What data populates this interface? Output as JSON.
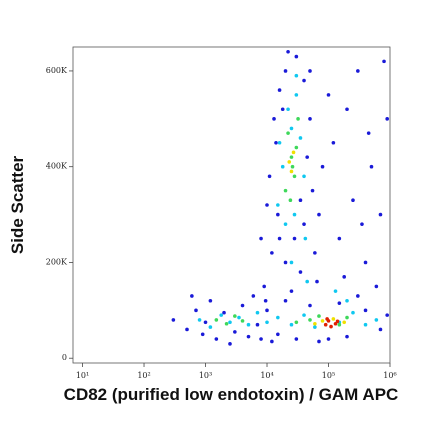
{
  "chart_data": {
    "type": "scatter",
    "x_label": "CD82 (purified low endotoxin) / GAM APC",
    "y_label": "Side Scatter",
    "xscale": "log",
    "xlim": [
      7,
      1000000
    ],
    "xticks": [
      {
        "value": 10,
        "label": "10¹"
      },
      {
        "value": 100,
        "label": "10²"
      },
      {
        "value": 1000,
        "label": "10³"
      },
      {
        "value": 10000,
        "label": "10⁴"
      },
      {
        "value": 100000,
        "label": "10⁵"
      },
      {
        "value": 1000000,
        "label": "10⁶"
      }
    ],
    "ylim": [
      -10000,
      650000
    ],
    "yticks": [
      0,
      {
        "value": 200000,
        "label": "200K"
      },
      {
        "value": 400000,
        "label": "400K"
      },
      {
        "value": 600000,
        "label": "600K"
      }
    ],
    "series": [
      {
        "color": "#1a1ad8",
        "x": [
          9000,
          12000,
          15000,
          11000,
          14000,
          18000,
          20000,
          30000,
          40000,
          50000,
          45000,
          55000,
          40000,
          60000,
          35000,
          25000,
          8000,
          10000,
          13000,
          16000,
          22000,
          28000,
          70000,
          80000,
          65000,
          9500,
          20000,
          35000,
          16000,
          50000,
          120000,
          200000,
          300000,
          500000,
          700000,
          150000,
          250000,
          400000,
          600000,
          900000,
          180000,
          350000,
          800000,
          100000,
          450000,
          300,
          500,
          700,
          900,
          1200,
          1500,
          2000,
          3000,
          4000,
          5000,
          6000,
          8000,
          10000,
          15000,
          20000,
          30000,
          50000,
          70000,
          150000,
          200000,
          400000,
          700000,
          900000,
          600,
          2500,
          12000,
          100000,
          300000,
          1000,
          7000
        ],
        "values": [
          150000,
          220000,
          300000,
          380000,
          450000,
          520000,
          600000,
          630000,
          580000,
          500000,
          420000,
          350000,
          280000,
          220000,
          180000,
          140000,
          250000,
          320000,
          500000,
          560000,
          640000,
          250000,
          300000,
          400000,
          160000,
          120000,
          200000,
          330000,
          250000,
          600000,
          450000,
          520000,
          600000,
          400000,
          300000,
          250000,
          330000,
          200000,
          150000,
          500000,
          170000,
          280000,
          620000,
          550000,
          470000,
          80000,
          60000,
          100000,
          50000,
          120000,
          40000,
          95000,
          55000,
          110000,
          45000,
          130000,
          40000,
          100000,
          50000,
          120000,
          40000,
          110000,
          35000,
          115000,
          45000,
          100000,
          60000,
          90000,
          130000,
          30000,
          35000,
          40000,
          130000,
          75000,
          70000
        ]
      },
      {
        "color": "#10c8f0",
        "x": [
          15000,
          18000,
          25000,
          30000,
          20000,
          40000,
          35000,
          22000,
          28000,
          16000,
          42000,
          25000,
          45000,
          30000,
          800,
          1200,
          1800,
          2500,
          3500,
          5000,
          7000,
          10000,
          15000,
          25000,
          40000,
          60000,
          150000,
          250000,
          400000,
          600000,
          200000,
          130000
        ],
        "values": [
          320000,
          400000,
          480000,
          550000,
          280000,
          380000,
          460000,
          520000,
          300000,
          450000,
          250000,
          200000,
          160000,
          590000,
          80000,
          65000,
          90000,
          75000,
          85000,
          70000,
          95000,
          75000,
          85000,
          70000,
          90000,
          65000,
          75000,
          95000,
          70000,
          80000,
          120000,
          140000
        ]
      },
      {
        "color": "#3ed85a",
        "x": [
          20000,
          25000,
          28000,
          22000,
          30000,
          24000,
          32000,
          26000,
          1500,
          2200,
          3000,
          4000,
          30000,
          50000,
          70000,
          150000,
          200000
        ],
        "values": [
          350000,
          420000,
          380000,
          470000,
          440000,
          330000,
          500000,
          400000,
          80000,
          72000,
          88000,
          78000,
          75000,
          80000,
          88000,
          70000,
          85000
        ]
      },
      {
        "color": "#f0e000",
        "x": [
          25000,
          27000,
          23000,
          60000,
          80000,
          120000,
          180000
        ],
        "values": [
          390000,
          430000,
          410000,
          72000,
          78000,
          82000,
          75000
        ]
      },
      {
        "color": "#e02000",
        "x": [
          90000,
          100000,
          110000,
          130000,
          95000,
          140000
        ],
        "values": [
          70000,
          78000,
          66000,
          72000,
          82000,
          77000
        ]
      }
    ]
  }
}
